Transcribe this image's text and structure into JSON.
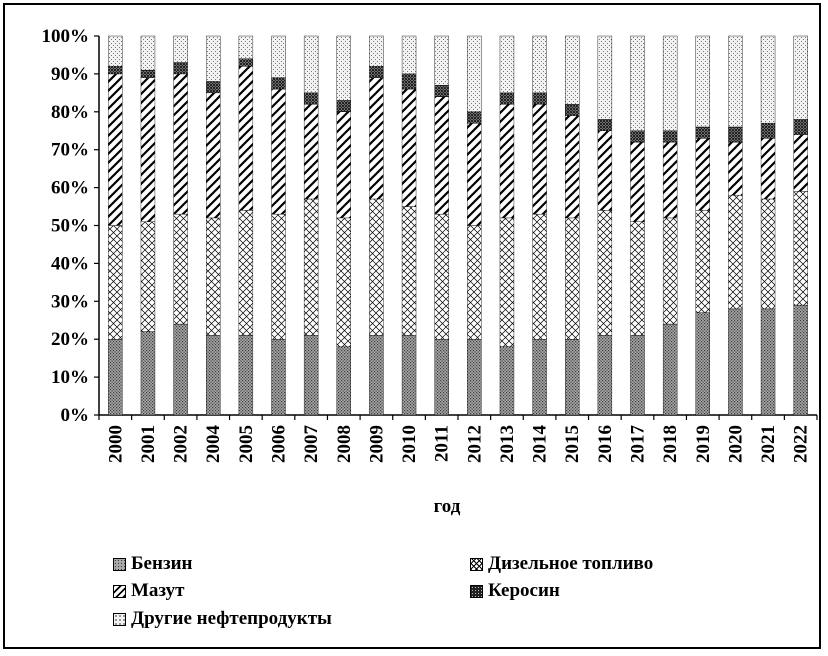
{
  "chart_data": {
    "type": "bar",
    "stacked": true,
    "normalized": true,
    "title": "",
    "xlabel": "год",
    "ylabel": "",
    "ylim": [
      0,
      100
    ],
    "yticks": [
      "0%",
      "10%",
      "20%",
      "30%",
      "40%",
      "50%",
      "60%",
      "70%",
      "80%",
      "90%",
      "100%"
    ],
    "categories": [
      "2000",
      "2001",
      "2002",
      "2004",
      "2005",
      "2006",
      "2007",
      "2008",
      "2009",
      "2010",
      "2011",
      "2012",
      "2013",
      "2014",
      "2015",
      "2016",
      "2017",
      "2018",
      "2019",
      "2020",
      "2021",
      "2022"
    ],
    "series": [
      {
        "name": "Бензин",
        "pattern": "dense-dots",
        "values": [
          20,
          22,
          24,
          21,
          21,
          20,
          21,
          18,
          21,
          21,
          20,
          20,
          18,
          20,
          20,
          21,
          21,
          24,
          27,
          28,
          28,
          29
        ]
      },
      {
        "name": "Дизельное топливо",
        "pattern": "crosshatch",
        "values": [
          30,
          29,
          29,
          31,
          33,
          33,
          36,
          34,
          36,
          34,
          33,
          30,
          34,
          33,
          32,
          33,
          30,
          28,
          27,
          30,
          29,
          30
        ]
      },
      {
        "name": "Мазут",
        "pattern": "diagonal-stripes",
        "values": [
          40,
          38,
          37,
          33,
          38,
          33,
          25,
          28,
          32,
          31,
          31,
          27,
          30,
          29,
          27,
          21,
          21,
          20,
          19,
          14,
          16,
          15
        ]
      },
      {
        "name": "Керосин",
        "pattern": "dark-checker",
        "values": [
          2,
          2,
          3,
          3,
          2,
          3,
          3,
          3,
          3,
          4,
          3,
          3,
          3,
          3,
          3,
          3,
          3,
          3,
          3,
          4,
          4,
          4
        ]
      },
      {
        "name": "Другие нефтепродукты",
        "pattern": "light-dots",
        "values": [
          8,
          9,
          7,
          12,
          6,
          11,
          15,
          17,
          8,
          10,
          13,
          20,
          15,
          15,
          18,
          22,
          25,
          25,
          24,
          24,
          23,
          22
        ]
      }
    ],
    "grid": false,
    "legend_position": "bottom"
  }
}
